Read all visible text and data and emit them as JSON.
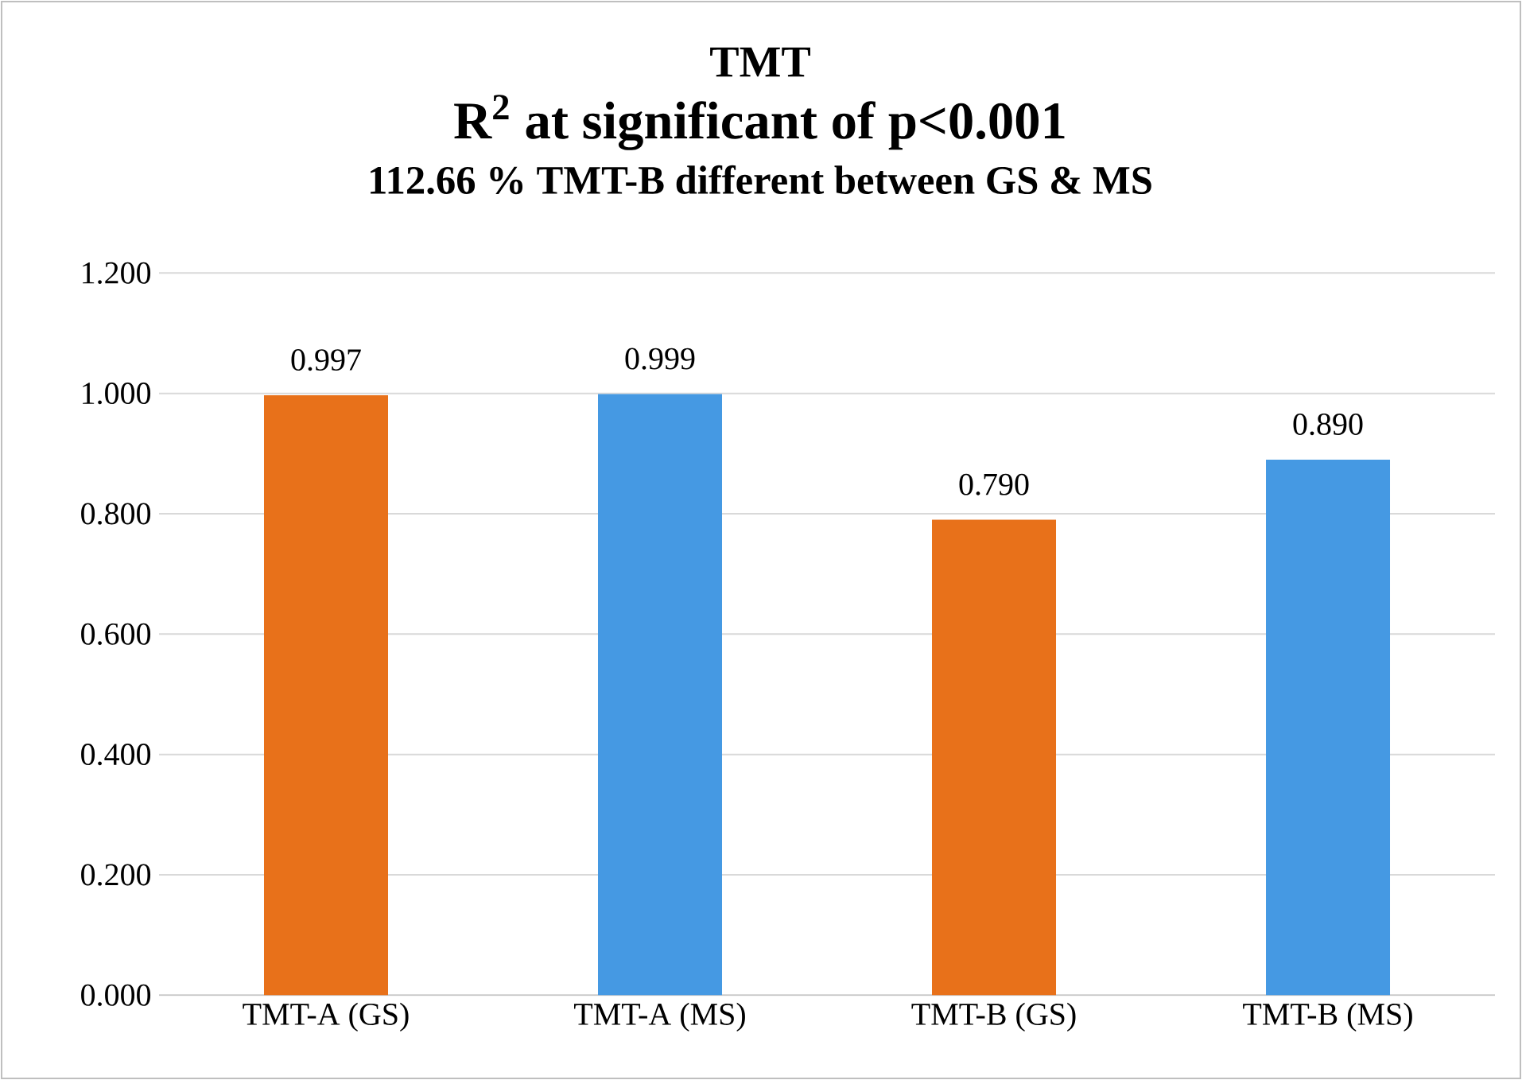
{
  "chart_data": {
    "type": "bar",
    "title": "TMT",
    "subtitle": "R$^{2}$ at significant of p<0.001",
    "annotations": [
      "112.66 %  TMT-B different between GS & MS"
    ],
    "categories": [
      "TMT-A (GS)",
      "TMT-A (MS)",
      "TMT-B (GS)",
      "TMT-B (MS)"
    ],
    "values": [
      0.997,
      0.999,
      0.79,
      0.89
    ],
    "colors": [
      "#e8711a",
      "#4599e3",
      "#e8711a",
      "#4599e3"
    ],
    "value_labels": [
      "0.997",
      "0.999",
      "0.790",
      "0.890"
    ],
    "ylim": [
      0,
      1.2
    ],
    "yticks": [
      {
        "value": 0,
        "label": "0.000"
      },
      {
        "value": 0.2,
        "label": "0.200"
      },
      {
        "value": 0.4,
        "label": "0.400"
      },
      {
        "value": 0.6,
        "label": "0.600"
      },
      {
        "value": 0.8,
        "label": "0.800"
      },
      {
        "value": 1.0,
        "label": "1.000"
      },
      {
        "value": 1.2,
        "label": "1.200"
      }
    ],
    "grid": "y"
  }
}
